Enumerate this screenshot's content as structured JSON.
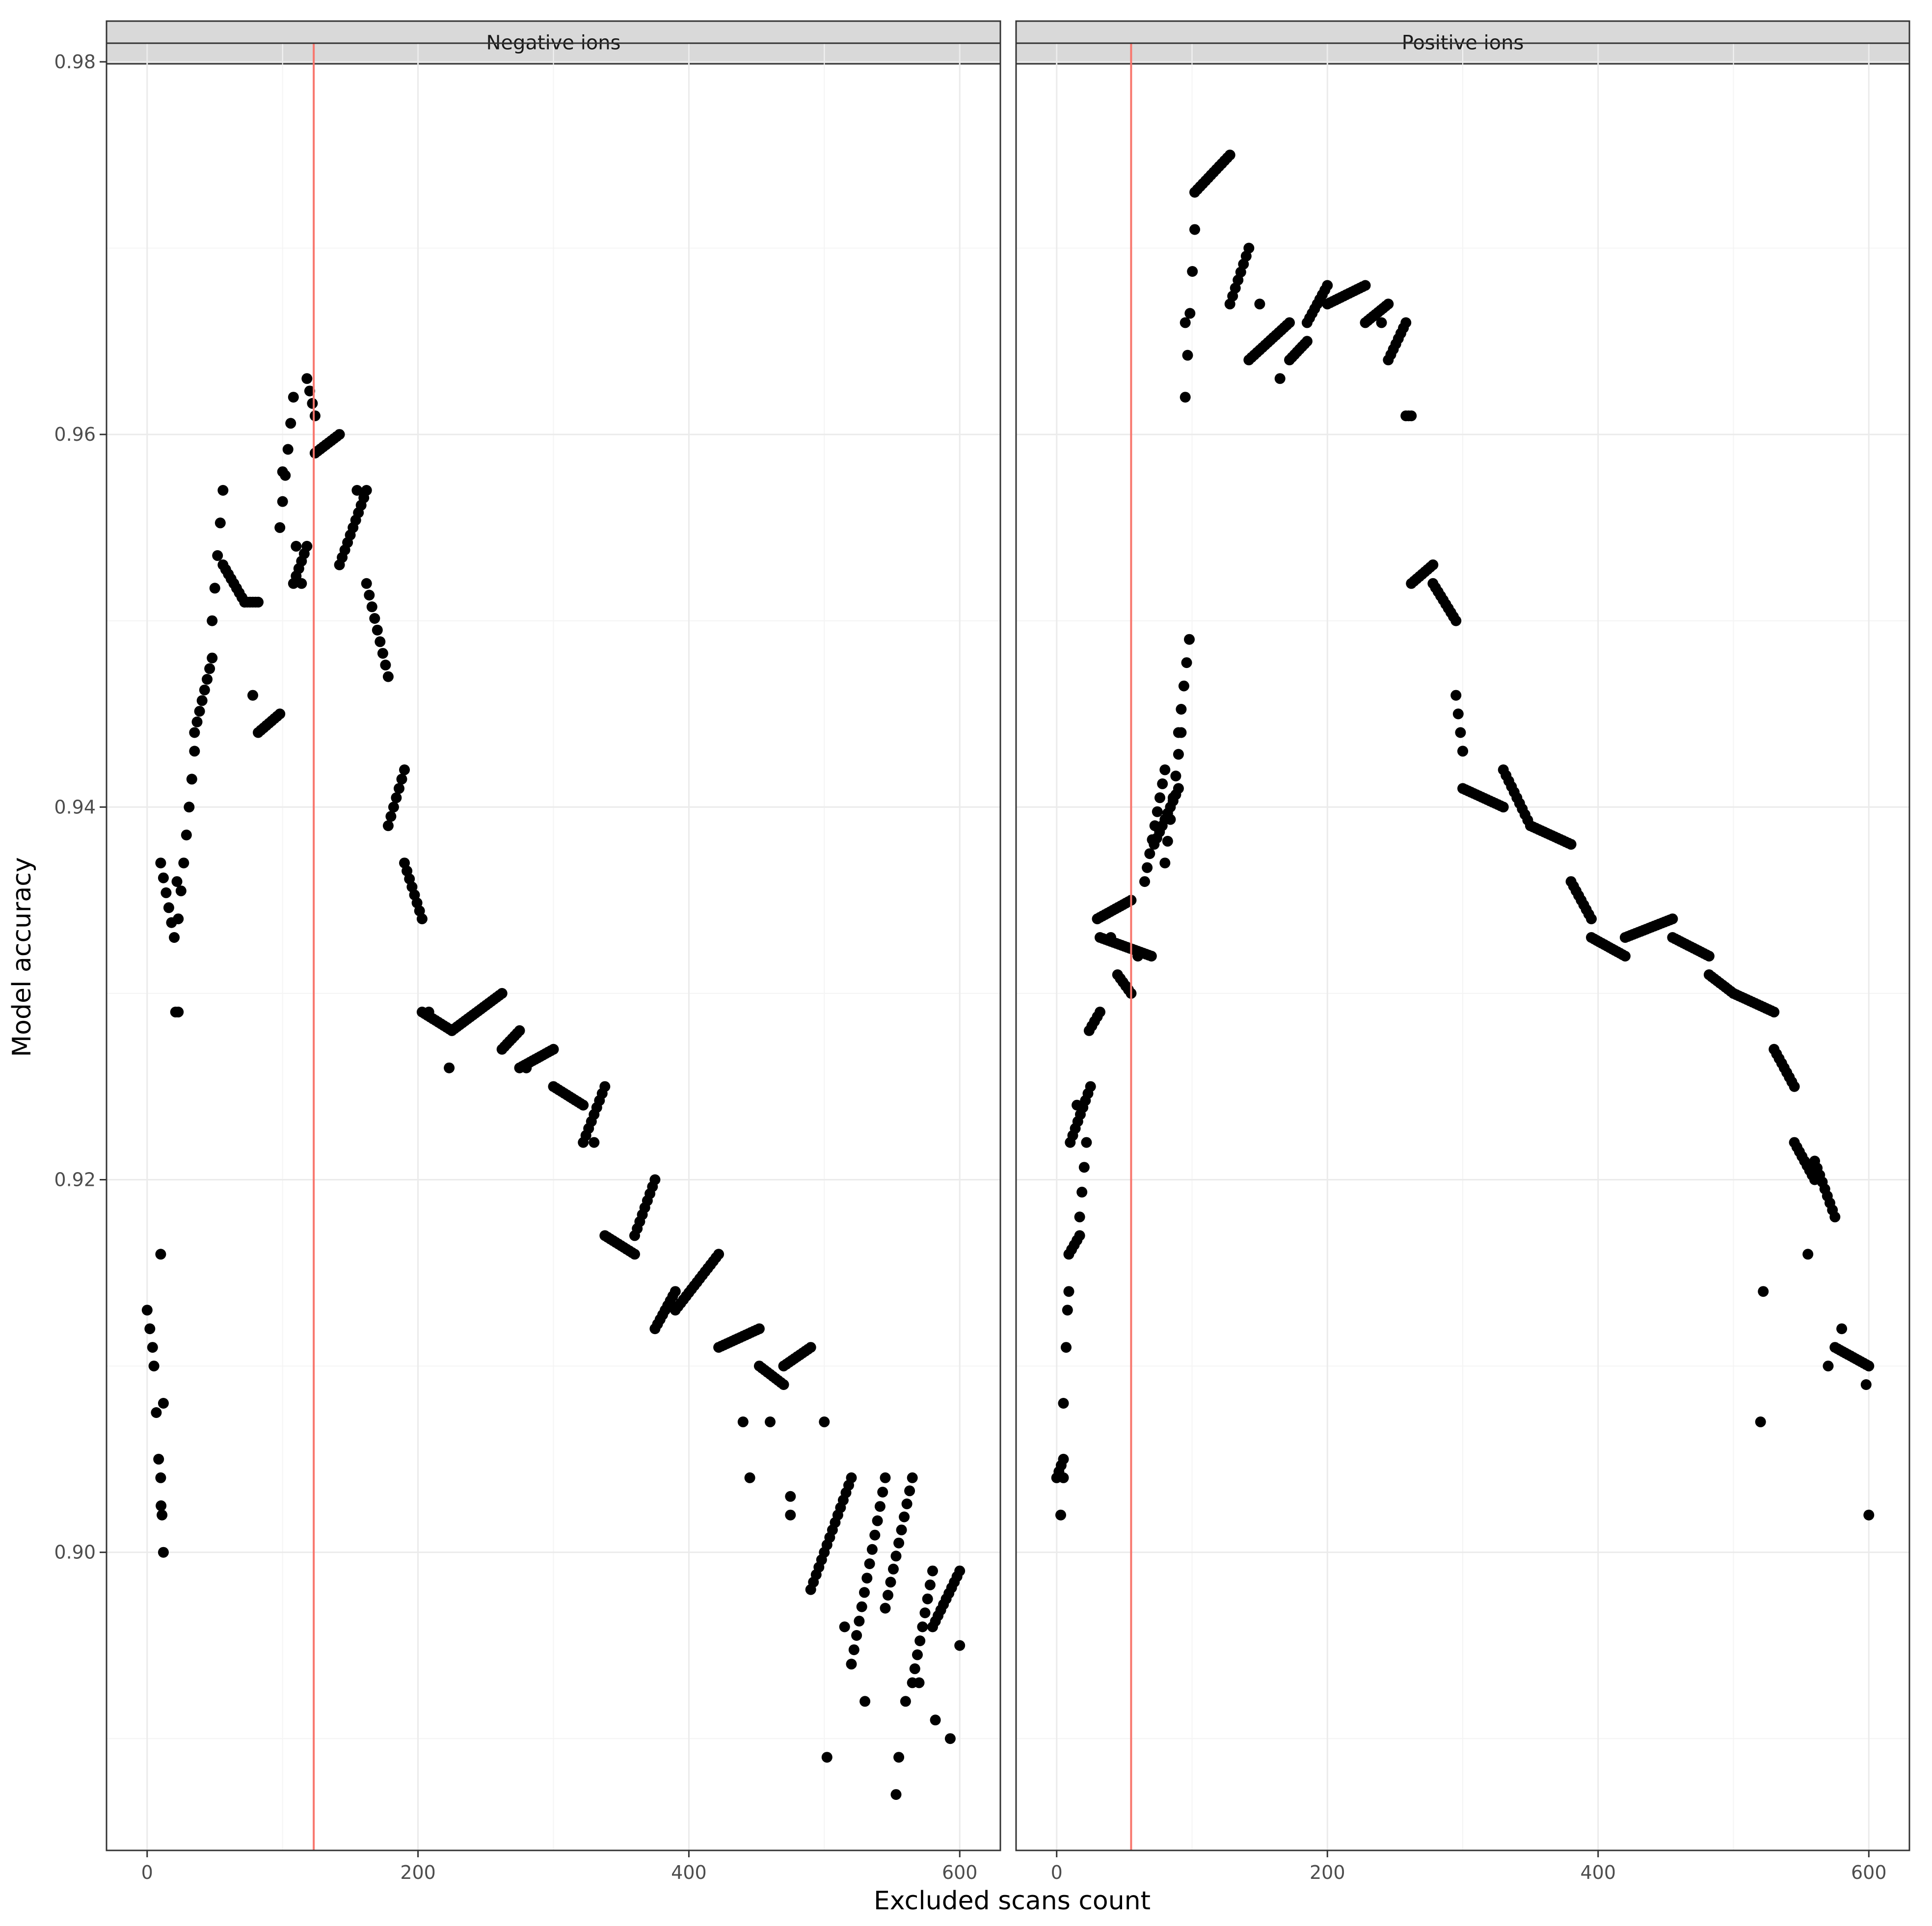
{
  "chart_data": {
    "type": "scatter",
    "xlabel": "Excluded scans count",
    "ylabel": "Model accuracy",
    "xlim": [
      -30,
      630
    ],
    "ylim": [
      0.884,
      0.981
    ],
    "x_ticks": [
      0,
      200,
      400,
      600
    ],
    "y_ticks": [
      0.9,
      0.92,
      0.94,
      0.96,
      0.98
    ],
    "y_tick_labels": [
      "0.90",
      "0.92",
      "0.94",
      "0.96",
      "0.98"
    ],
    "x_tick_labels": [
      "0",
      "200",
      "400",
      "600"
    ],
    "grid": true,
    "point_color": "#000000",
    "vline_color": "#f8766d",
    "panels": [
      {
        "label": "Negative ions",
        "vline_x": 123,
        "segments": [
          [
            0,
            4,
            0.913,
            0.911
          ],
          [
            5,
            12,
            0.91,
            0.9
          ],
          [
            10,
            20,
            0.937,
            0.933
          ],
          [
            21,
            23,
            0.929,
            0.929
          ],
          [
            23,
            35,
            0.934,
            0.943
          ],
          [
            35,
            48,
            0.944,
            0.948
          ],
          [
            48,
            56,
            0.95,
            0.957
          ],
          [
            56,
            72,
            0.953,
            0.951
          ],
          [
            72,
            82,
            0.951,
            0.951
          ],
          [
            82,
            98,
            0.944,
            0.945
          ],
          [
            98,
            108,
            0.955,
            0.962
          ],
          [
            108,
            118,
            0.952,
            0.954
          ],
          [
            118,
            124,
            0.963,
            0.961
          ],
          [
            124,
            142,
            0.959,
            0.96
          ],
          [
            142,
            162,
            0.953,
            0.957
          ],
          [
            162,
            178,
            0.952,
            0.947
          ],
          [
            178,
            190,
            0.939,
            0.942
          ],
          [
            190,
            203,
            0.937,
            0.934
          ],
          [
            203,
            225,
            0.929,
            0.928
          ],
          [
            225,
            262,
            0.928,
            0.93
          ],
          [
            262,
            275,
            0.927,
            0.928
          ],
          [
            275,
            300,
            0.926,
            0.927
          ],
          [
            300,
            322,
            0.925,
            0.924
          ],
          [
            322,
            338,
            0.922,
            0.925
          ],
          [
            338,
            360,
            0.917,
            0.916
          ],
          [
            360,
            375,
            0.917,
            0.92
          ],
          [
            375,
            390,
            0.912,
            0.914
          ],
          [
            390,
            422,
            0.913,
            0.916
          ],
          [
            422,
            452,
            0.911,
            0.912
          ],
          [
            452,
            470,
            0.91,
            0.909
          ],
          [
            470,
            490,
            0.91,
            0.911
          ],
          [
            490,
            520,
            0.898,
            0.904
          ],
          [
            520,
            545,
            0.894,
            0.904
          ],
          [
            545,
            565,
            0.897,
            0.904
          ],
          [
            565,
            580,
            0.893,
            0.899
          ],
          [
            580,
            600,
            0.896,
            0.899
          ]
        ],
        "points": [
          [
            10,
            0.916
          ],
          [
            10,
            0.904
          ],
          [
            11,
            0.902
          ],
          [
            12,
            0.908
          ],
          [
            22,
            0.936
          ],
          [
            78,
            0.946
          ],
          [
            100,
            0.958
          ],
          [
            110,
            0.954
          ],
          [
            114,
            0.952
          ],
          [
            155,
            0.957
          ],
          [
            208,
            0.929
          ],
          [
            223,
            0.926
          ],
          [
            280,
            0.926
          ],
          [
            330,
            0.922
          ],
          [
            440,
            0.907
          ],
          [
            445,
            0.904
          ],
          [
            460,
            0.907
          ],
          [
            475,
            0.903
          ],
          [
            475,
            0.902
          ],
          [
            500,
            0.907
          ],
          [
            502,
            0.889
          ],
          [
            515,
            0.896
          ],
          [
            530,
            0.892
          ],
          [
            553,
            0.887
          ],
          [
            555,
            0.889
          ],
          [
            560,
            0.892
          ],
          [
            570,
            0.893
          ],
          [
            582,
            0.891
          ],
          [
            593,
            0.89
          ],
          [
            600,
            0.895
          ]
        ]
      },
      {
        "label": "Positive ions",
        "vline_x": 55,
        "segments": [
          [
            0,
            5,
            0.904,
            0.905
          ],
          [
            5,
            9,
            0.908,
            0.914
          ],
          [
            9,
            17,
            0.916,
            0.917
          ],
          [
            10,
            25,
            0.922,
            0.925
          ],
          [
            17,
            22,
            0.918,
            0.922
          ],
          [
            24,
            32,
            0.928,
            0.929
          ],
          [
            30,
            55,
            0.934,
            0.935
          ],
          [
            32,
            70,
            0.933,
            0.932
          ],
          [
            45,
            55,
            0.931,
            0.93
          ],
          [
            65,
            80,
            0.936,
            0.942
          ],
          [
            72,
            90,
            0.938,
            0.941
          ],
          [
            80,
            92,
            0.937,
            0.944
          ],
          [
            90,
            98,
            0.944,
            0.949
          ],
          [
            95,
            102,
            0.962,
            0.971
          ],
          [
            102,
            128,
            0.973,
            0.975
          ],
          [
            128,
            142,
            0.967,
            0.97
          ],
          [
            142,
            172,
            0.964,
            0.966
          ],
          [
            172,
            185,
            0.964,
            0.965
          ],
          [
            185,
            200,
            0.966,
            0.968
          ],
          [
            200,
            228,
            0.967,
            0.968
          ],
          [
            228,
            245,
            0.966,
            0.967
          ],
          [
            245,
            258,
            0.964,
            0.966
          ],
          [
            258,
            262,
            0.961,
            0.961
          ],
          [
            262,
            278,
            0.952,
            0.953
          ],
          [
            278,
            295,
            0.952,
            0.95
          ],
          [
            295,
            300,
            0.946,
            0.943
          ],
          [
            300,
            330,
            0.941,
            0.94
          ],
          [
            330,
            350,
            0.942,
            0.939
          ],
          [
            350,
            380,
            0.939,
            0.938
          ],
          [
            380,
            395,
            0.936,
            0.934
          ],
          [
            395,
            420,
            0.933,
            0.932
          ],
          [
            420,
            455,
            0.933,
            0.934
          ],
          [
            455,
            482,
            0.933,
            0.932
          ],
          [
            482,
            500,
            0.931,
            0.93
          ],
          [
            500,
            530,
            0.93,
            0.929
          ],
          [
            530,
            545,
            0.927,
            0.925
          ],
          [
            545,
            560,
            0.922,
            0.92
          ],
          [
            560,
            575,
            0.921,
            0.918
          ],
          [
            575,
            600,
            0.911,
            0.91
          ]
        ],
        "points": [
          [
            3,
            0.902
          ],
          [
            5,
            0.904
          ],
          [
            8,
            0.913
          ],
          [
            15,
            0.924
          ],
          [
            40,
            0.933
          ],
          [
            60,
            0.932
          ],
          [
            95,
            0.966
          ],
          [
            150,
            0.967
          ],
          [
            165,
            0.963
          ],
          [
            240,
            0.966
          ],
          [
            300,
            0.943
          ],
          [
            520,
            0.907
          ],
          [
            522,
            0.914
          ],
          [
            555,
            0.916
          ],
          [
            570,
            0.91
          ],
          [
            580,
            0.912
          ],
          [
            598,
            0.909
          ],
          [
            600,
            0.902
          ]
        ]
      }
    ]
  }
}
